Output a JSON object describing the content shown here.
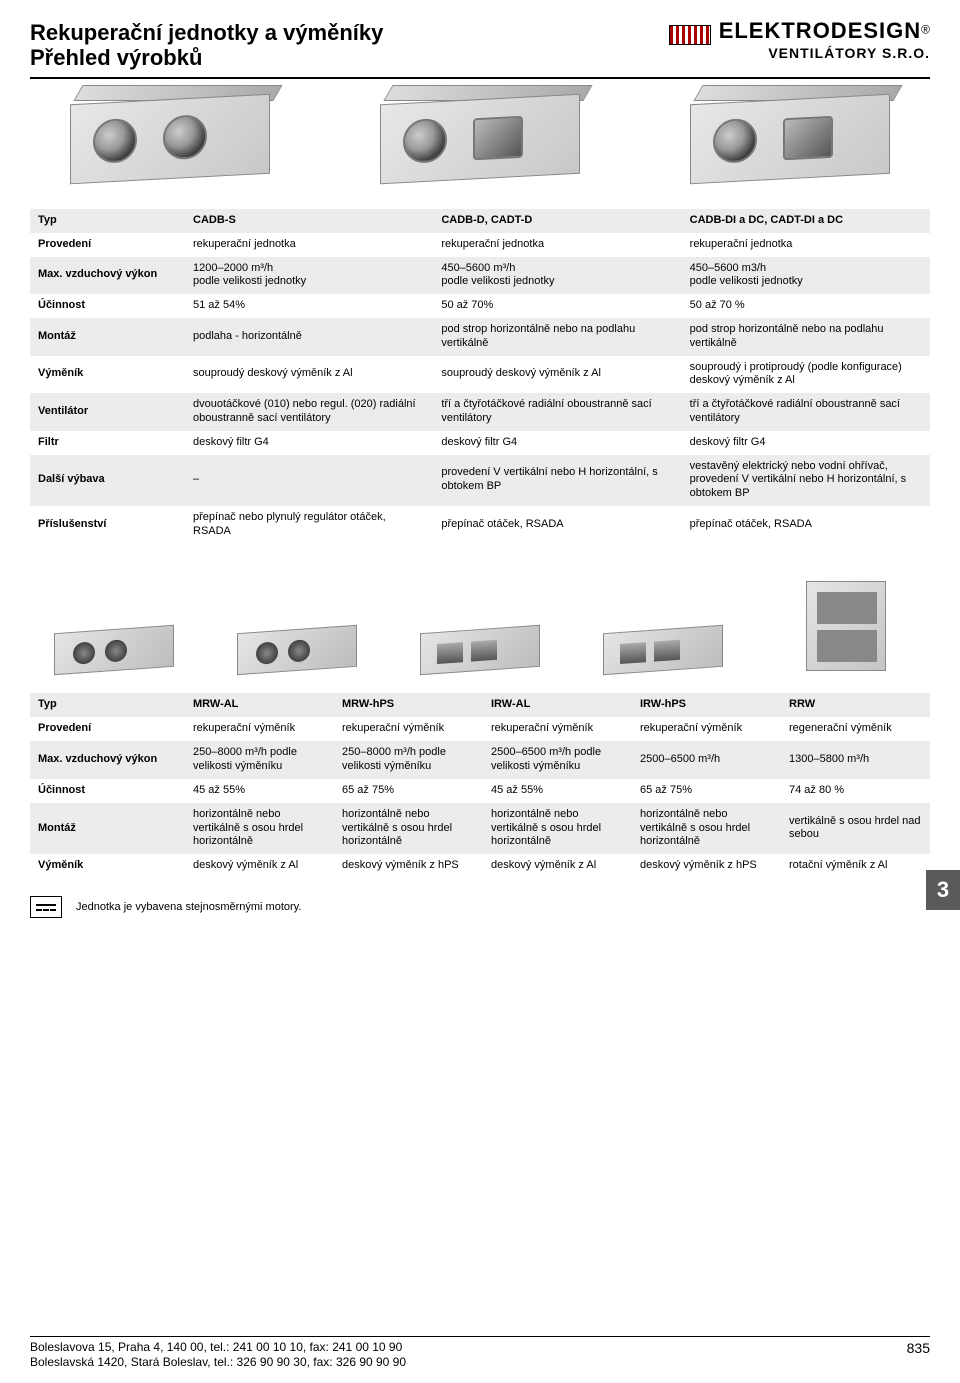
{
  "header": {
    "title_line1": "Rekuperační jednotky a výměníky",
    "title_line2": "Přehled výrobků",
    "logo_main": "ELEKTRODESIGN",
    "logo_reg": "®",
    "logo_sub": "VENTILÁTORY S.R.O."
  },
  "page_tab": "3",
  "table1": {
    "head": {
      "label": "Typ",
      "c1": "CADB-S",
      "c2": "CADB-D, CADT-D",
      "c3": "CADB-DI a DC, CADT-DI a DC"
    },
    "rows": [
      {
        "label": "Provedení",
        "c1": "rekuperační jednotka",
        "c2": "rekuperační jednotka",
        "c3": "rekuperační jednotka",
        "shaded": false
      },
      {
        "label": "Max. vzduchový výkon",
        "c1": "1200–2000 m³/h\npodle velikosti jednotky",
        "c2": "450–5600 m³/h\npodle velikosti jednotky",
        "c3": "450–5600 m3/h\npodle velikosti jednotky",
        "shaded": true
      },
      {
        "label": "Účinnost",
        "c1": "51 až 54%",
        "c2": "50 až 70%",
        "c3": "50 až 70 %",
        "shaded": false
      },
      {
        "label": "Montáž",
        "c1": "podlaha - horizontálně",
        "c2": "pod strop horizontálně nebo na podlahu vertikálně",
        "c3": "pod strop horizontálně nebo na podlahu vertikálně",
        "shaded": true
      },
      {
        "label": "Výměník",
        "c1": "souproudý deskový výměník z Al",
        "c2": "souproudý deskový výměník z Al",
        "c3": "souproudý i protiproudý (podle konfigurace) deskový výměník z Al",
        "shaded": false
      },
      {
        "label": "Ventilátor",
        "c1": "dvouotáčkové (010) nebo regul. (020) radiální oboustranně sací ventilátory",
        "c2": "tří a čtyřotáčkové radiální oboustranně sací ventilátory",
        "c3": "tří a čtyřotáčkové radiální oboustranně sací ventilátory",
        "shaded": true
      },
      {
        "label": "Filtr",
        "c1": "deskový filtr G4",
        "c2": "deskový filtr G4",
        "c3": "deskový filtr G4",
        "shaded": false
      },
      {
        "label": "Další výbava",
        "c1": "–",
        "c2": "provedení V vertikální nebo H horizontální, s obtokem BP",
        "c3": "vestavěný elektrický nebo vodní ohřívač, provedení V vertikální nebo H horizontální, s obtokem BP",
        "shaded": true
      },
      {
        "label": "Příslušenství",
        "c1": "přepínač nebo plynulý regulátor otáček, RSADA",
        "c2": "přepínač otáček, RSADA",
        "c3": "přepínač otáček, RSADA",
        "shaded": false
      }
    ]
  },
  "table2": {
    "head": {
      "label": "Typ",
      "c1": "MRW-AL",
      "c2": "MRW-hPS",
      "c3": "IRW-AL",
      "c4": "IRW-hPS",
      "c5": "RRW"
    },
    "rows": [
      {
        "label": "Provedení",
        "c1": "rekuperační výměník",
        "c2": "rekuperační výměník",
        "c3": "rekuperační výměník",
        "c4": "rekuperační výměník",
        "c5": "regenerační výměník",
        "shaded": false
      },
      {
        "label": "Max. vzduchový výkon",
        "c1": "250–8000 m³/h podle velikosti výměníku",
        "c2": "250–8000 m³/h podle velikosti výměníku",
        "c3": "2500–6500 m³/h podle velikosti výměníku",
        "c4": "2500–6500 m³/h",
        "c5": "1300–5800 m³/h",
        "shaded": true
      },
      {
        "label": "Účinnost",
        "c1": "45 až 55%",
        "c2": "65 až 75%",
        "c3": "45 až 55%",
        "c4": "65 až 75%",
        "c5": "74 až 80 %",
        "shaded": false
      },
      {
        "label": "Montáž",
        "c1": "horizontálně nebo vertikálně s osou hrdel horizontálně",
        "c2": "horizontálně nebo vertikálně s osou hrdel horizontálně",
        "c3": "horizontálně nebo vertikálně s osou hrdel horizontálně",
        "c4": "horizontálně nebo vertikálně s osou hrdel horizontálně",
        "c5": "vertikálně s osou hrdel nad sebou",
        "shaded": true
      },
      {
        "label": "Výměník",
        "c1": "deskový výměník z Al",
        "c2": "deskový výměník z hPS",
        "c3": "deskový výměník z Al",
        "c4": "deskový výměník z hPS",
        "c5": "rotační výměník z Al",
        "shaded": false
      }
    ]
  },
  "footnote": "Jednotka je vybavena stejnosměrnými motory.",
  "footer": {
    "line1": "Boleslavova 15, Praha 4, 140 00, tel.: 241 00 10 10, fax: 241 00 10 90",
    "line2": "Boleslavská 1420, Stará Boleslav, tel.: 326 90 90 30, fax: 326 90 90 90",
    "page_no": "835"
  },
  "colors": {
    "shaded_row": "#ececee",
    "tab_bg": "#5a5a5a",
    "tab_fg": "#ffffff",
    "rule": "#000000"
  }
}
